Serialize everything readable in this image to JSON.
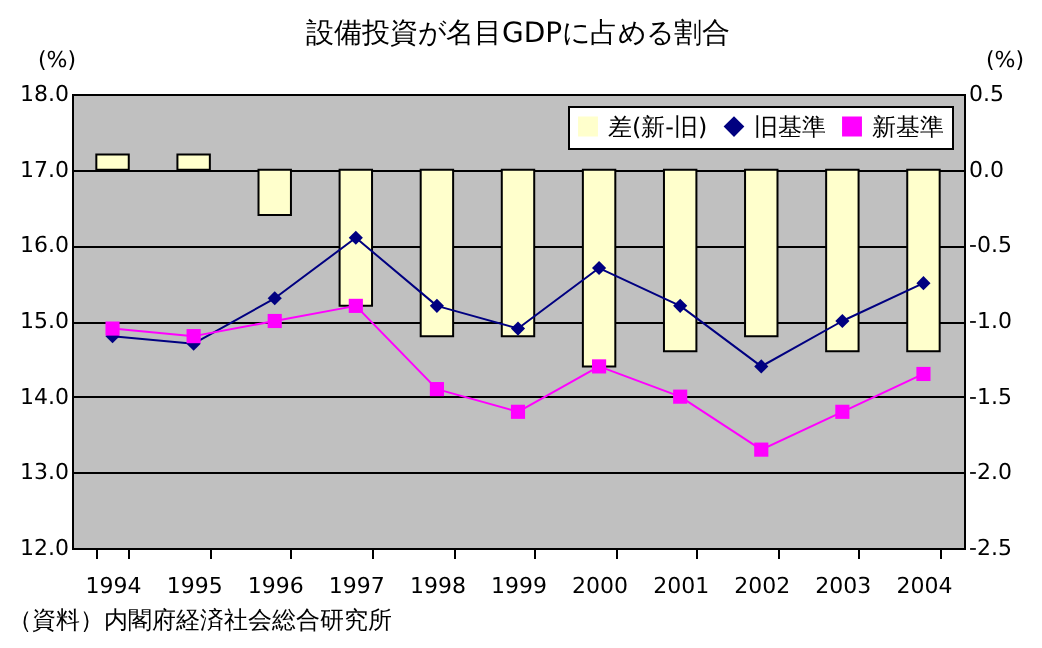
{
  "chart_data": {
    "type": "line",
    "title": "設備投資が名目GDPに占める割合",
    "ylabel": "(%)",
    "y2label": "(%)",
    "categories": [
      "1994",
      "1995",
      "1996",
      "1997",
      "1998",
      "1999",
      "2000",
      "2001",
      "2002",
      "2003",
      "2004"
    ],
    "series": [
      {
        "name": "差(新-旧)",
        "type": "bar",
        "axis": "y2",
        "color": "#ffffcc",
        "values": [
          0.1,
          0.1,
          -0.3,
          -0.9,
          -1.1,
          -1.1,
          -1.3,
          -1.2,
          -1.1,
          -1.2,
          -1.2
        ]
      },
      {
        "name": "旧基準",
        "marker": "diamond",
        "color": "#000080",
        "values": [
          14.8,
          14.7,
          15.3,
          16.1,
          15.2,
          14.9,
          15.7,
          15.2,
          14.4,
          15.0,
          15.5
        ]
      },
      {
        "name": "新基準",
        "marker": "square",
        "color": "#ff00ff",
        "values": [
          14.9,
          14.8,
          15.0,
          15.2,
          14.1,
          13.8,
          14.4,
          14.0,
          13.3,
          13.8,
          14.3
        ]
      }
    ],
    "ylim": [
      12,
      18
    ],
    "yticks": [
      {
        "value": 12,
        "label": "12.0"
      },
      {
        "value": 13,
        "label": "13.0"
      },
      {
        "value": 14,
        "label": "14.0"
      },
      {
        "value": 15,
        "label": "15.0"
      },
      {
        "value": 16,
        "label": "16.0"
      },
      {
        "value": 17,
        "label": "17.0"
      },
      {
        "value": 18,
        "label": "18.0"
      }
    ],
    "y2lim": [
      -2.5,
      0.5
    ],
    "y2ticks": [
      {
        "value": -2.5,
        "label": "-2.5"
      },
      {
        "value": -2,
        "label": "-2.0"
      },
      {
        "value": -1.5,
        "label": "-1.5"
      },
      {
        "value": -1,
        "label": "-1.0"
      },
      {
        "value": -0.5,
        "label": "-0.5"
      },
      {
        "value": 0,
        "label": "0.0"
      },
      {
        "value": 0.5,
        "label": "0.5"
      }
    ],
    "grid": "y",
    "legend": "top right",
    "annotations": [
      "（資料）内閣府経済社会総合研究所"
    ]
  }
}
